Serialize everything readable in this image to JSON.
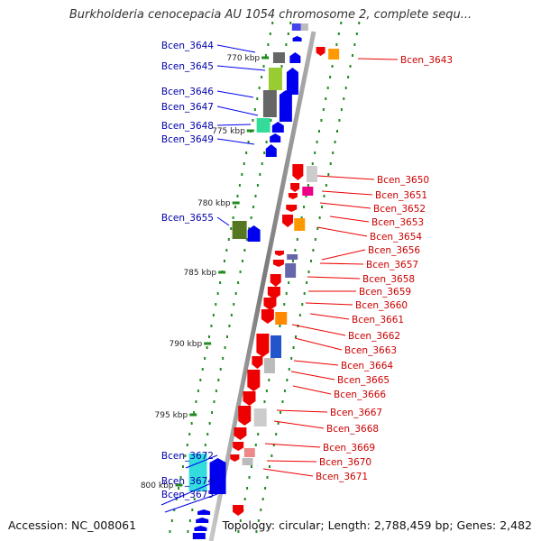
{
  "title": "Burkholderia cenocepacia AU 1054 chromosome 2, complete sequ...",
  "footer": {
    "accession": "Accession: NC_008061",
    "stats": "Topology: circular; Length: 2,788,459 bp; Genes: 2,482"
  },
  "colors": {
    "forward": "#0000ee",
    "reverse": "#ee0000",
    "backbone": "#8a8a8a",
    "ticks": "#228b22"
  },
  "kbp_labels": [
    "770 kbp",
    "775 kbp",
    "780 kbp",
    "785 kbp",
    "790 kbp",
    "795 kbp",
    "800 kbp"
  ],
  "left_genes": [
    "Bcen_3644",
    "Bcen_3645",
    "Bcen_3646",
    "Bcen_3647",
    "Bcen_3648",
    "Bcen_3649",
    "Bcen_3655",
    "Bcen_3672",
    "Bcen_3674",
    "Bcen_3675"
  ],
  "right_genes": [
    "Bcen_3643",
    "Bcen_3650",
    "Bcen_3651",
    "Bcen_3652",
    "Bcen_3653",
    "Bcen_3654",
    "Bcen_3656",
    "Bcen_3657",
    "Bcen_3658",
    "Bcen_3659",
    "Bcen_3660",
    "Bcen_3661",
    "Bcen_3662",
    "Bcen_3663",
    "Bcen_3664",
    "Bcen_3665",
    "Bcen_3666",
    "Bcen_3667",
    "Bcen_3668",
    "Bcen_3669",
    "Bcen_3670",
    "Bcen_3671"
  ]
}
